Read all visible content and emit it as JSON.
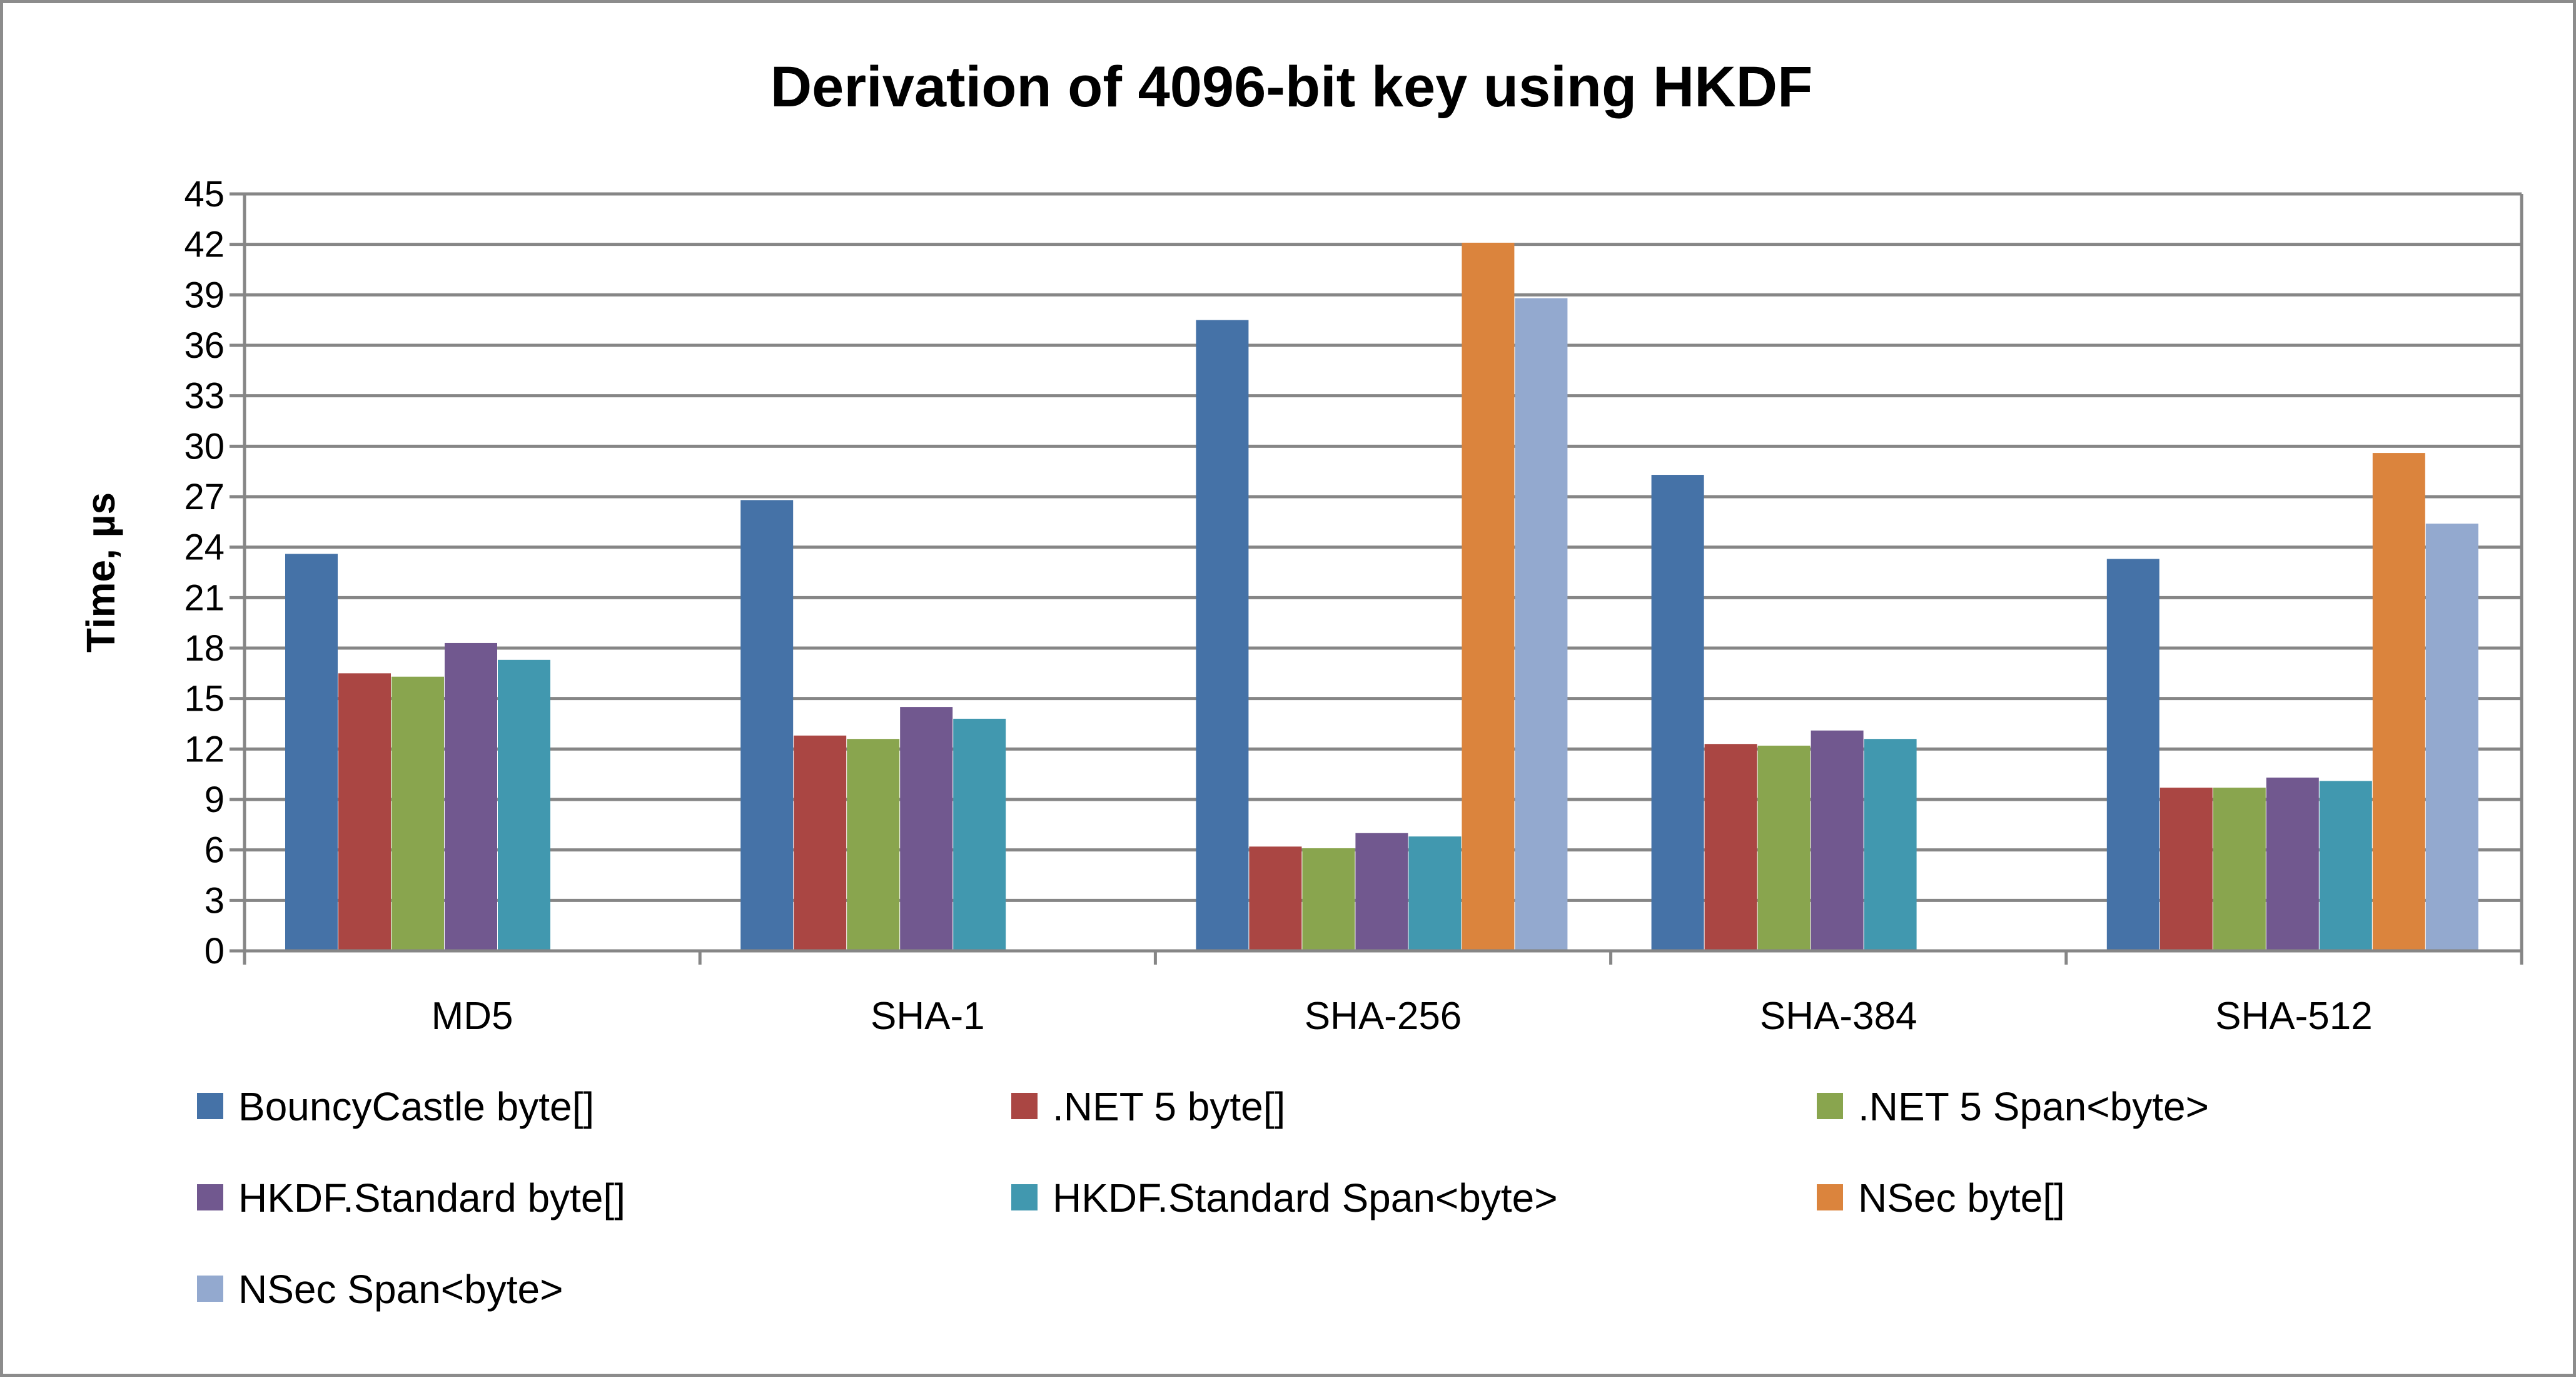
{
  "chart_data": {
    "type": "bar",
    "title": "Derivation of 4096-bit key using HKDF",
    "xlabel": "",
    "ylabel": "Time, µs",
    "ylim": [
      0,
      45
    ],
    "yticks": [
      0,
      3,
      6,
      9,
      12,
      15,
      18,
      21,
      24,
      27,
      30,
      33,
      36,
      39,
      42,
      45
    ],
    "grid": true,
    "legend_position": "bottom",
    "categories": [
      "MD5",
      "SHA-1",
      "SHA-256",
      "SHA-384",
      "SHA-512"
    ],
    "series": [
      {
        "name": "BouncyCastle byte[]",
        "color": "#4572a7",
        "values": [
          23.6,
          26.8,
          37.5,
          28.3,
          23.3
        ]
      },
      {
        "name": ".NET 5 byte[]",
        "color": "#aa4643",
        "values": [
          16.5,
          12.8,
          6.2,
          12.3,
          9.7
        ]
      },
      {
        "name": ".NET 5 Span<byte>",
        "color": "#89a54e",
        "values": [
          16.3,
          12.6,
          6.1,
          12.2,
          9.7
        ]
      },
      {
        "name": "HKDF.Standard byte[]",
        "color": "#71588f",
        "values": [
          18.3,
          14.5,
          7.0,
          13.1,
          10.3
        ]
      },
      {
        "name": "HKDF.Standard Span<byte>",
        "color": "#4198af",
        "values": [
          17.3,
          13.8,
          6.8,
          12.6,
          10.1
        ]
      },
      {
        "name": "NSec byte[]",
        "color": "#db843d",
        "values": [
          null,
          null,
          42.1,
          null,
          29.6
        ]
      },
      {
        "name": "NSec Span<byte>",
        "color": "#93a9cf",
        "values": [
          null,
          null,
          38.8,
          null,
          25.4
        ]
      }
    ]
  }
}
